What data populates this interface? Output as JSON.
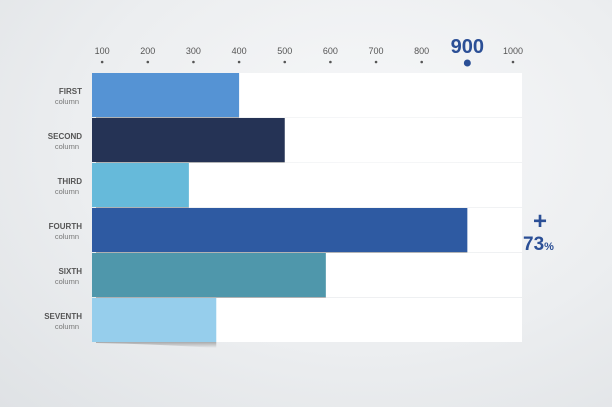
{
  "chart_data": {
    "type": "bar",
    "orientation": "horizontal",
    "title": "",
    "xlabel": "",
    "ylabel": "",
    "xlim": [
      0,
      1000
    ],
    "ticks": [
      100,
      200,
      300,
      400,
      500,
      600,
      700,
      800,
      900,
      1000
    ],
    "highlighted_tick": "900",
    "grid": false,
    "categories": [
      {
        "name": "FIRST",
        "sub": "column"
      },
      {
        "name": "SECOND",
        "sub": "column"
      },
      {
        "name": "THIRD",
        "sub": "column"
      },
      {
        "name": "FOURTH",
        "sub": "column"
      },
      {
        "name": "SIXTH",
        "sub": "column"
      },
      {
        "name": "SEVENTH",
        "sub": "column"
      }
    ],
    "values": [
      400,
      500,
      290,
      900,
      590,
      350
    ],
    "colors": [
      "#5593d4",
      "#253355",
      "#66bada",
      "#2e5aa2",
      "#4f97ab",
      "#96ceec"
    ],
    "annotation": {
      "category": "FOURTH",
      "symbol": "+",
      "value": "73",
      "unit": "%",
      "color": "#2b4f96"
    },
    "track_color": "#ffffff",
    "label_color": "#555555",
    "tick_label_color": "#555555"
  }
}
